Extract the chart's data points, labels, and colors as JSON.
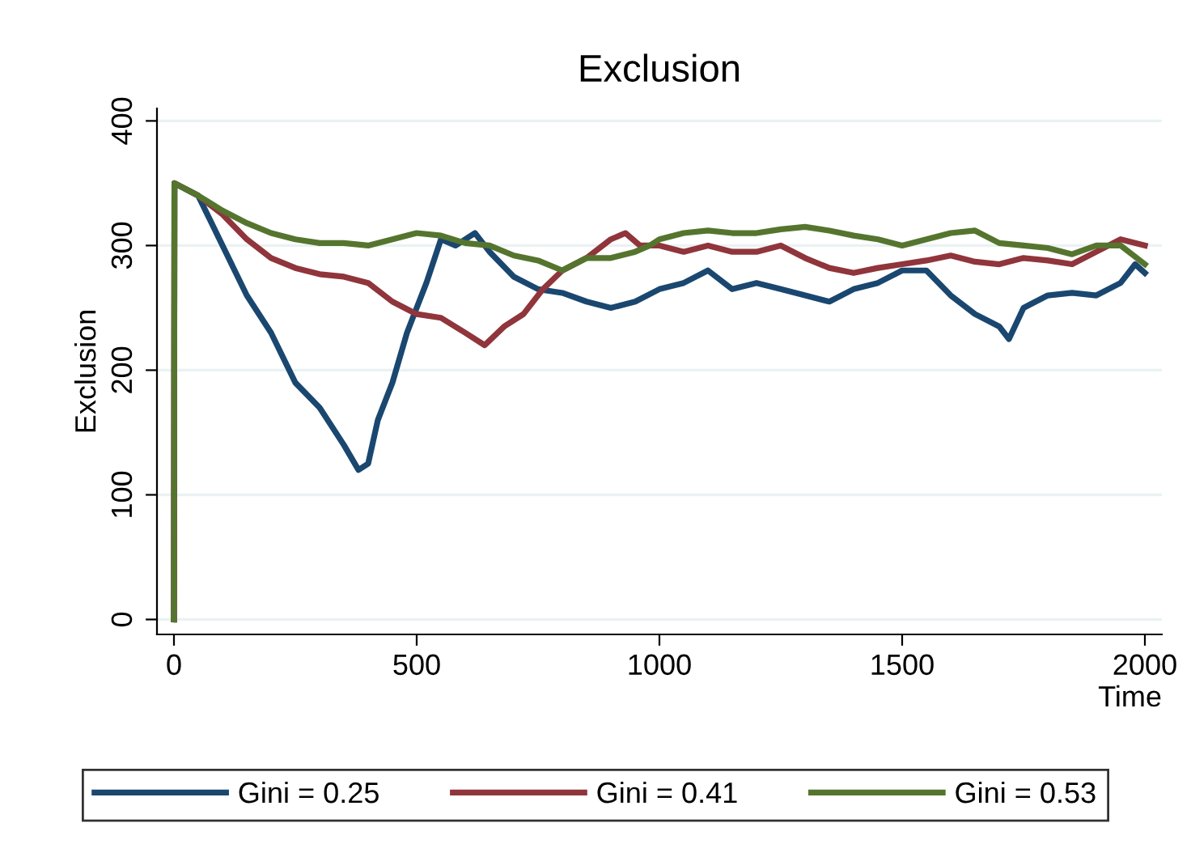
{
  "chart_data": {
    "type": "line",
    "title": "Exclusion",
    "xlabel": "Time",
    "ylabel": "Exclusion",
    "xlim": [
      -35,
      2035
    ],
    "ylim": [
      -12,
      410
    ],
    "xticks": [
      0,
      500,
      1000,
      1500,
      2000
    ],
    "yticks": [
      0,
      100,
      200,
      300,
      400
    ],
    "grid": "y",
    "legend": "bottom",
    "line_style": "solid",
    "marker": "none",
    "series": [
      {
        "name": "Gini = 0.25",
        "color": "#1a476f",
        "x": [
          0,
          1,
          50,
          100,
          150,
          200,
          250,
          300,
          350,
          380,
          400,
          420,
          450,
          480,
          520,
          550,
          580,
          620,
          650,
          700,
          750,
          800,
          850,
          900,
          950,
          1000,
          1050,
          1100,
          1150,
          1200,
          1250,
          1300,
          1350,
          1400,
          1450,
          1500,
          1550,
          1600,
          1650,
          1700,
          1720,
          1750,
          1800,
          1850,
          1900,
          1950,
          1980,
          2000
        ],
        "values": [
          0,
          350,
          340,
          300,
          260,
          230,
          190,
          170,
          140,
          120,
          125,
          160,
          190,
          230,
          270,
          305,
          300,
          310,
          295,
          275,
          265,
          262,
          255,
          250,
          255,
          265,
          270,
          280,
          265,
          270,
          265,
          260,
          255,
          265,
          270,
          280,
          280,
          260,
          245,
          235,
          225,
          250,
          260,
          262,
          260,
          270,
          285,
          278
        ]
      },
      {
        "name": "Gini = 0.41",
        "color": "#90353b",
        "x": [
          0,
          1,
          50,
          100,
          150,
          200,
          250,
          300,
          350,
          400,
          450,
          500,
          550,
          600,
          640,
          680,
          720,
          760,
          800,
          850,
          900,
          930,
          960,
          1000,
          1050,
          1100,
          1150,
          1200,
          1250,
          1300,
          1350,
          1400,
          1450,
          1500,
          1550,
          1600,
          1650,
          1700,
          1750,
          1800,
          1850,
          1900,
          1950,
          2000
        ],
        "values": [
          0,
          350,
          340,
          325,
          305,
          290,
          282,
          277,
          275,
          270,
          255,
          245,
          242,
          230,
          220,
          235,
          245,
          265,
          280,
          290,
          305,
          310,
          300,
          300,
          295,
          300,
          295,
          295,
          300,
          290,
          282,
          278,
          282,
          285,
          288,
          292,
          287,
          285,
          290,
          288,
          285,
          295,
          305,
          300
        ]
      },
      {
        "name": "Gini = 0.53",
        "color": "#55752f",
        "x": [
          0,
          1,
          50,
          100,
          150,
          200,
          250,
          300,
          350,
          400,
          450,
          500,
          550,
          600,
          650,
          700,
          750,
          800,
          850,
          900,
          950,
          980,
          1000,
          1050,
          1100,
          1150,
          1200,
          1250,
          1300,
          1350,
          1400,
          1450,
          1500,
          1550,
          1600,
          1650,
          1700,
          1750,
          1800,
          1850,
          1900,
          1950,
          2000
        ],
        "values": [
          0,
          350,
          340,
          328,
          318,
          310,
          305,
          302,
          302,
          300,
          305,
          310,
          308,
          302,
          300,
          292,
          288,
          280,
          290,
          290,
          295,
          300,
          305,
          310,
          312,
          310,
          310,
          313,
          315,
          312,
          308,
          305,
          300,
          305,
          310,
          312,
          302,
          300,
          298,
          293,
          300,
          300,
          285
        ]
      }
    ]
  }
}
